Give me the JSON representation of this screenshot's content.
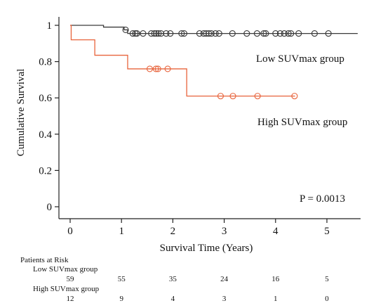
{
  "chart_data": {
    "type": "line",
    "subtype": "kaplan-meier",
    "xlabel": "Survival Time (Years)",
    "ylabel": "Cumulative Survival",
    "xlim": [
      -0.2,
      5.7
    ],
    "ylim": [
      -0.03,
      1.07
    ],
    "xticks": [
      0,
      1,
      2,
      3,
      4,
      5
    ],
    "xtick_labels": [
      "0",
      "1",
      "2",
      "3",
      "4",
      "5"
    ],
    "yticks": [
      0,
      0.2,
      0.4,
      0.6,
      0.8,
      1
    ],
    "ytick_labels": [
      "0",
      "0.2",
      "0.4",
      "0.6",
      "0.8",
      "1"
    ],
    "grid": false,
    "series": [
      {
        "name": "Low SUVmax group",
        "color": "#3a3a3a",
        "steps": [
          [
            0,
            1.0
          ],
          [
            0.65,
            0.99
          ],
          [
            1.05,
            0.975
          ],
          [
            1.12,
            0.955
          ],
          [
            5.6,
            0.955
          ]
        ],
        "censored": [
          [
            1.08,
            0.975
          ],
          [
            1.22,
            0.955
          ],
          [
            1.27,
            0.955
          ],
          [
            1.3,
            0.955
          ],
          [
            1.42,
            0.955
          ],
          [
            1.58,
            0.955
          ],
          [
            1.64,
            0.955
          ],
          [
            1.68,
            0.955
          ],
          [
            1.72,
            0.955
          ],
          [
            1.77,
            0.955
          ],
          [
            1.87,
            0.955
          ],
          [
            1.95,
            0.955
          ],
          [
            2.17,
            0.955
          ],
          [
            2.22,
            0.955
          ],
          [
            2.52,
            0.955
          ],
          [
            2.6,
            0.955
          ],
          [
            2.65,
            0.955
          ],
          [
            2.7,
            0.955
          ],
          [
            2.75,
            0.955
          ],
          [
            2.83,
            0.955
          ],
          [
            2.9,
            0.955
          ],
          [
            3.16,
            0.955
          ],
          [
            3.44,
            0.955
          ],
          [
            3.64,
            0.955
          ],
          [
            3.77,
            0.955
          ],
          [
            3.81,
            0.955
          ],
          [
            4.0,
            0.955
          ],
          [
            4.09,
            0.955
          ],
          [
            4.17,
            0.955
          ],
          [
            4.25,
            0.955
          ],
          [
            4.3,
            0.955
          ],
          [
            4.45,
            0.955
          ],
          [
            4.76,
            0.955
          ],
          [
            5.03,
            0.955
          ]
        ]
      },
      {
        "name": "High SUVmax group",
        "color": "#e8643c",
        "steps": [
          [
            0,
            1.0
          ],
          [
            0.02,
            0.92
          ],
          [
            0.48,
            0.835
          ],
          [
            1.12,
            0.76
          ],
          [
            2.27,
            0.61
          ],
          [
            4.38,
            0.61
          ]
        ],
        "censored": [
          [
            1.55,
            0.76
          ],
          [
            1.67,
            0.76
          ],
          [
            1.71,
            0.76
          ],
          [
            1.9,
            0.76
          ],
          [
            2.93,
            0.61
          ],
          [
            3.17,
            0.61
          ],
          [
            3.65,
            0.61
          ],
          [
            4.37,
            0.61
          ]
        ]
      }
    ],
    "annotations": {
      "low_label": "Low SUVmax group",
      "high_label": "High SUVmax group",
      "p_value": "P = 0.0013"
    }
  },
  "risk_table": {
    "title": "Patients at Risk",
    "groups": [
      {
        "label": "Low SUVmax group",
        "counts": [
          "59",
          "55",
          "35",
          "24",
          "16",
          "5"
        ]
      },
      {
        "label": "High SUVmax group",
        "counts": [
          "12",
          "9",
          "4",
          "3",
          "1",
          "0"
        ]
      }
    ]
  }
}
